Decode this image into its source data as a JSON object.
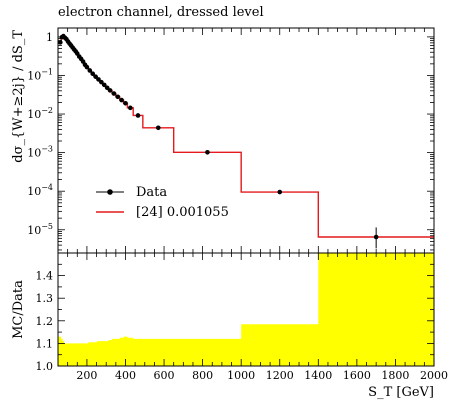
{
  "chart_data": [
    {
      "type": "line",
      "title": "electron channel, dressed level",
      "ylabel": "dσ_{W+≥2j} / dS_T",
      "yscale": "log",
      "xlim": [
        50,
        2000
      ],
      "ylim": [
        2.5e-06,
        1.7
      ],
      "yticks": [
        {
          "value": 1,
          "label": "1"
        },
        {
          "value": 0.1,
          "label": "10^-1"
        },
        {
          "value": 0.01,
          "label": "10^-2"
        },
        {
          "value": 0.001,
          "label": "10^-3"
        },
        {
          "value": 0.0001,
          "label": "10^-4"
        },
        {
          "value": 1e-05,
          "label": "10^-5"
        }
      ],
      "series": [
        {
          "name": "Data",
          "style": "points",
          "color": "#000000",
          "x": [
            62,
            70,
            78,
            86,
            94,
            102,
            110,
            118,
            126,
            134,
            142,
            150,
            160,
            170,
            180,
            190,
            200,
            215,
            230,
            245,
            260,
            275,
            290,
            305,
            320,
            340,
            360,
            380,
            400,
            425,
            465,
            570,
            825,
            1200,
            1700
          ],
          "y": [
            0.72,
            0.98,
            1.05,
            0.95,
            0.87,
            0.76,
            0.67,
            0.6,
            0.53,
            0.47,
            0.42,
            0.37,
            0.31,
            0.27,
            0.23,
            0.19,
            0.165,
            0.135,
            0.111,
            0.093,
            0.079,
            0.067,
            0.057,
            0.048,
            0.041,
            0.034,
            0.028,
            0.023,
            0.019,
            0.0145,
            0.0092,
            0.0044,
            0.00102,
            9.5e-05,
            6.5e-06
          ],
          "yerr_low": [
            0,
            0,
            0,
            0,
            0,
            0,
            0,
            0,
            0,
            0,
            0,
            0,
            0,
            0,
            0,
            0,
            0,
            0,
            0,
            0,
            0,
            0,
            0,
            0,
            0,
            0,
            0,
            0,
            0,
            0,
            0,
            0,
            0,
            1e-05,
            3.2e-06
          ],
          "yerr_high": [
            0,
            0,
            0,
            0,
            0,
            0,
            0,
            0,
            0,
            0,
            0,
            0,
            0,
            0,
            0,
            0,
            0,
            0,
            0,
            0,
            0,
            0,
            0,
            0,
            0,
            0,
            0,
            0,
            0,
            0,
            0,
            0,
            0,
            1e-05,
            5e-06
          ]
        },
        {
          "name": "[24] 0.001055",
          "style": "step",
          "color": "#e41a1c",
          "edges": [
            50,
            66,
            74,
            82,
            90,
            98,
            106,
            114,
            122,
            130,
            138,
            146,
            155,
            165,
            175,
            185,
            195,
            207,
            222,
            237,
            252,
            267,
            282,
            297,
            312,
            330,
            350,
            370,
            390,
            410,
            440,
            490,
            650,
            1000,
            1400,
            2000
          ],
          "values": [
            0.72,
            0.98,
            1.05,
            0.95,
            0.87,
            0.76,
            0.67,
            0.6,
            0.53,
            0.47,
            0.42,
            0.37,
            0.31,
            0.27,
            0.23,
            0.19,
            0.165,
            0.135,
            0.111,
            0.093,
            0.079,
            0.067,
            0.057,
            0.048,
            0.041,
            0.034,
            0.028,
            0.023,
            0.019,
            0.0145,
            0.0092,
            0.0044,
            0.00102,
            9.5e-05,
            6.5e-06
          ]
        }
      ],
      "legend": {
        "position": "bottom-left"
      }
    },
    {
      "type": "area",
      "ylabel": "MC/Data",
      "xlabel": "S_T [GeV]",
      "xlim": [
        50,
        2000
      ],
      "ylim": [
        1.0,
        1.5
      ],
      "xticks": [
        200,
        400,
        600,
        800,
        1000,
        1200,
        1400,
        1600,
        1800,
        2000
      ],
      "yticks": [
        1.0,
        1.1,
        1.2,
        1.3,
        1.4
      ],
      "band_color": "#ffff00",
      "band": {
        "edges": [
          50,
          66,
          74,
          82,
          90,
          98,
          106,
          114,
          122,
          130,
          138,
          146,
          155,
          165,
          175,
          185,
          195,
          207,
          222,
          237,
          252,
          267,
          282,
          297,
          312,
          330,
          350,
          370,
          390,
          410,
          440,
          490,
          650,
          1000,
          1400,
          2000
        ],
        "high": [
          1.13,
          1.12,
          1.11,
          1.1,
          1.1,
          1.1,
          1.1,
          1.1,
          1.1,
          1.1,
          1.1,
          1.1,
          1.1,
          1.1,
          1.1,
          1.1,
          1.1,
          1.105,
          1.105,
          1.105,
          1.11,
          1.11,
          1.11,
          1.11,
          1.115,
          1.12,
          1.12,
          1.125,
          1.13,
          1.125,
          1.12,
          1.12,
          1.12,
          1.185,
          1.5
        ]
      },
      "reference": 1.0
    }
  ]
}
